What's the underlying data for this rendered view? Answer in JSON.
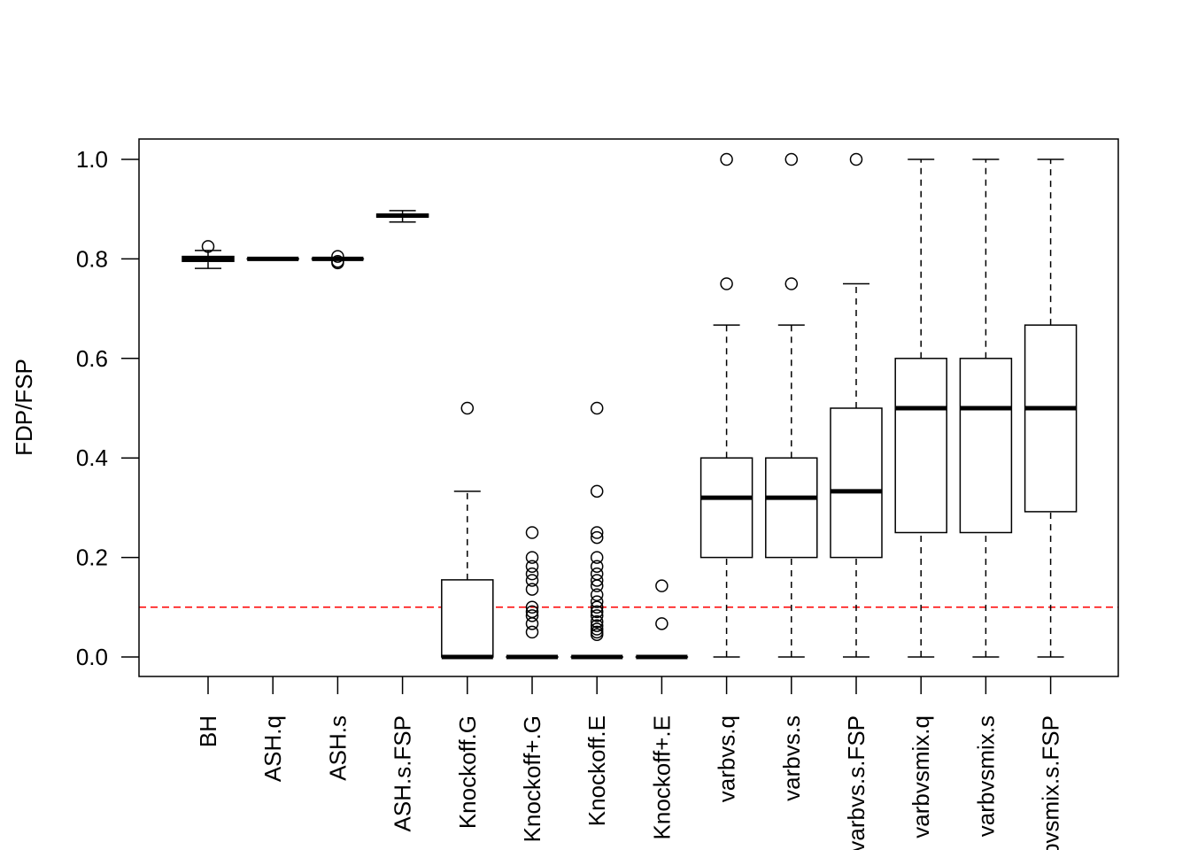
{
  "chart_data": {
    "type": "box",
    "ylabel": "FDP/FSP",
    "ylim": [
      -0.04,
      1.04
    ],
    "yticks": [
      "0.0",
      "0.2",
      "0.4",
      "0.6",
      "0.8",
      "1.0"
    ],
    "reference_line": {
      "y": 0.1,
      "color": "#ff0000",
      "style": "dashed"
    },
    "boxes": [
      {
        "label": "BH",
        "whisker_low": 0.781,
        "q1": 0.795,
        "median": 0.8,
        "q3": 0.805,
        "whisker_high": 0.817,
        "outliers": [
          0.825
        ]
      },
      {
        "label": "ASH.q",
        "whisker_low": 0.8,
        "q1": 0.8,
        "median": 0.8,
        "q3": 0.8,
        "whisker_high": 0.8,
        "outliers": []
      },
      {
        "label": "ASH.s",
        "whisker_low": 0.8,
        "q1": 0.8,
        "median": 0.8,
        "q3": 0.8,
        "whisker_high": 0.8,
        "outliers": [
          0.792,
          0.795,
          0.805
        ]
      },
      {
        "label": "ASH.s.FSP",
        "whisker_low": 0.874,
        "q1": 0.884,
        "median": 0.887,
        "q3": 0.89,
        "whisker_high": 0.897,
        "outliers": []
      },
      {
        "label": "Knockoff.G",
        "whisker_low": 0.0,
        "q1": 0.0,
        "median": 0.0,
        "q3": 0.155,
        "whisker_high": 0.333,
        "outliers": [
          0.5
        ]
      },
      {
        "label": "Knockoff+.G",
        "whisker_low": 0.0,
        "q1": 0.0,
        "median": 0.0,
        "q3": 0.0,
        "whisker_high": 0.0,
        "outliers": [
          0.05,
          0.067,
          0.083,
          0.091,
          0.1,
          0.136,
          0.154,
          0.167,
          0.182,
          0.2,
          0.25
        ]
      },
      {
        "label": "Knockoff.E",
        "whisker_low": 0.0,
        "q1": 0.0,
        "median": 0.0,
        "q3": 0.0,
        "whisker_high": 0.0,
        "outliers": [
          0.045,
          0.05,
          0.056,
          0.063,
          0.071,
          0.083,
          0.091,
          0.1,
          0.111,
          0.125,
          0.143,
          0.154,
          0.167,
          0.182,
          0.2,
          0.24,
          0.25,
          0.333,
          0.5
        ]
      },
      {
        "label": "Knockoff+.E",
        "whisker_low": 0.0,
        "q1": 0.0,
        "median": 0.0,
        "q3": 0.0,
        "whisker_high": 0.0,
        "outliers": [
          0.067,
          0.143
        ]
      },
      {
        "label": "varbvs.q",
        "whisker_low": 0.0,
        "q1": 0.2,
        "median": 0.32,
        "q3": 0.4,
        "whisker_high": 0.667,
        "outliers": [
          0.75,
          1.0
        ]
      },
      {
        "label": "varbvs.s",
        "whisker_low": 0.0,
        "q1": 0.2,
        "median": 0.32,
        "q3": 0.4,
        "whisker_high": 0.667,
        "outliers": [
          0.75,
          1.0
        ]
      },
      {
        "label": "varbvs.s.FSP",
        "whisker_low": 0.0,
        "q1": 0.2,
        "median": 0.333,
        "q3": 0.5,
        "whisker_high": 0.75,
        "outliers": [
          1.0
        ]
      },
      {
        "label": "varbvsmix.q",
        "whisker_low": 0.0,
        "q1": 0.25,
        "median": 0.5,
        "q3": 0.6,
        "whisker_high": 1.0,
        "outliers": []
      },
      {
        "label": "varbvsmix.s",
        "whisker_low": 0.0,
        "q1": 0.25,
        "median": 0.5,
        "q3": 0.6,
        "whisker_high": 1.0,
        "outliers": []
      },
      {
        "label": "varbvsmix.s.FSP",
        "whisker_low": 0.0,
        "q1": 0.292,
        "median": 0.5,
        "q3": 0.667,
        "whisker_high": 1.0,
        "outliers": []
      }
    ]
  }
}
